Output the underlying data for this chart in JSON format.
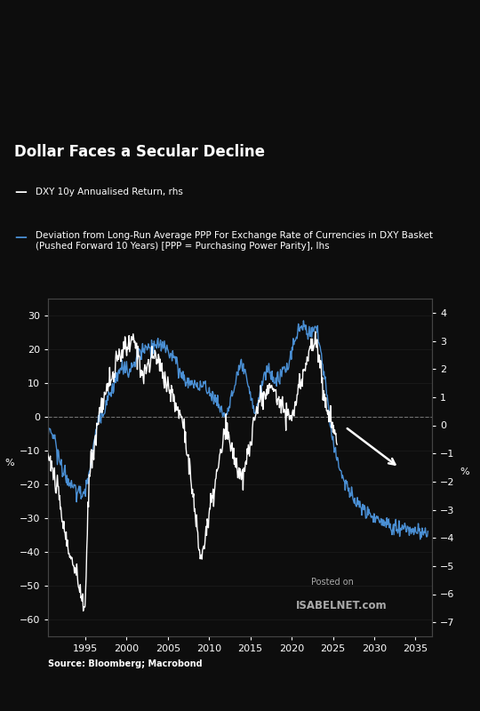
{
  "title": "Dollar Faces a Secular Decline",
  "legend_line1_label": "DXY 10y Annualised Return, rhs",
  "legend_line2_label": "Deviation from Long-Run Average PPP For Exchange Rate of Currencies in DXY Basket\n(Pushed Forward 10 Years) [PPP = Purchasing Power Parity], lhs",
  "source": "Source: Bloomberg; Macrobond",
  "background_color": "#0d0d0d",
  "text_color": "#ffffff",
  "grid_color": "#2a2a2a",
  "white_line_color": "#ffffff",
  "blue_line_color": "#4a8fd4",
  "ylabel_left": "%",
  "ylabel_right": "%",
  "ylim_left": [
    -65,
    35
  ],
  "ylim_right": [
    -7.5,
    4.5
  ],
  "xlim": [
    1990.5,
    2037
  ],
  "yticks_left": [
    -60,
    -50,
    -40,
    -30,
    -20,
    -10,
    0,
    10,
    20,
    30
  ],
  "yticks_right": [
    -7,
    -6,
    -5,
    -4,
    -3,
    -2,
    -1,
    0,
    1,
    2,
    3,
    4
  ],
  "xticks": [
    1995,
    2000,
    2005,
    2010,
    2015,
    2020,
    2025,
    2030,
    2035
  ]
}
